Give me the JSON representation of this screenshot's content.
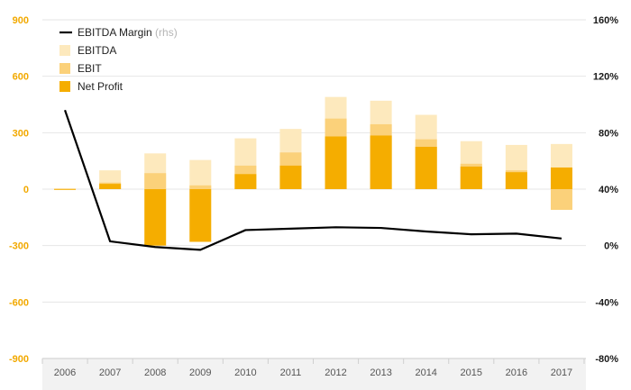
{
  "chart_data": {
    "type": "bar",
    "categories": [
      "2006",
      "2007",
      "2008",
      "2009",
      "2010",
      "2011",
      "2012",
      "2013",
      "2014",
      "2015",
      "2016",
      "2017"
    ],
    "series": [
      {
        "name": "EBITDA",
        "kind": "bar",
        "color": "#fde9bd",
        "values": [
          3,
          100,
          190,
          155,
          270,
          320,
          490,
          470,
          395,
          255,
          235,
          240
        ]
      },
      {
        "name": "EBIT",
        "kind": "bar",
        "color": "#fbd17a",
        "values": [
          2,
          35,
          85,
          20,
          125,
          195,
          375,
          345,
          265,
          135,
          100,
          -110
        ]
      },
      {
        "name": "Net Profit",
        "kind": "bar",
        "color": "#f5ad00",
        "values": [
          1,
          28,
          -300,
          -280,
          80,
          125,
          280,
          285,
          225,
          120,
          90,
          115
        ]
      },
      {
        "name": "EBITDA Margin",
        "suffix": "(rhs)",
        "kind": "line",
        "color": "#000000",
        "axis": "right",
        "values": [
          96,
          3,
          -1,
          -3,
          11,
          12,
          13,
          12.5,
          10,
          8,
          8.5,
          5
        ]
      }
    ],
    "ylim_left": [
      -900,
      900
    ],
    "yticks_left": [
      "900",
      "600",
      "300",
      "0",
      "-300",
      "-600",
      "-900"
    ],
    "ylim_right": [
      -80,
      160
    ],
    "yticks_right": [
      "160%",
      "120%",
      "80%",
      "40%",
      "0%",
      "-40%",
      "-80%"
    ],
    "legend": "top-left",
    "grid": true
  }
}
